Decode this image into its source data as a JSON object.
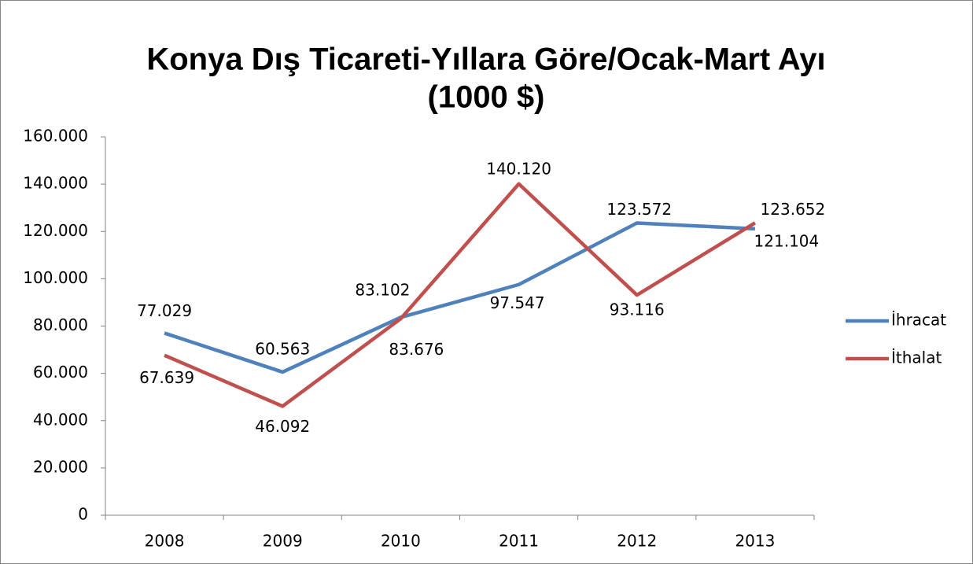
{
  "chart_data": {
    "type": "line",
    "title": [
      "Konya Dış Ticareti-Yıllara Göre/Ocak-Mart Ayı",
      "(1000 $)"
    ],
    "categories": [
      "2008",
      "2009",
      "2010",
      "2011",
      "2012",
      "2013"
    ],
    "series": [
      {
        "name": "İhracat",
        "color": "#4f81bd",
        "values": [
          77029,
          60563,
          83676,
          97547,
          123572,
          121104
        ],
        "value_labels": [
          "77.029",
          "60.563",
          "83.676",
          "97.547",
          "123.572",
          "121.104"
        ]
      },
      {
        "name": "İthalat",
        "color": "#c0504d",
        "values": [
          67639,
          46092,
          83102,
          140120,
          93116,
          123652
        ],
        "value_labels": [
          "67.639",
          "46.092",
          "83.102",
          "140.120",
          "93.116",
          "123.652"
        ]
      }
    ],
    "ylim": [
      0,
      160000
    ],
    "yticks": [
      0,
      {
        "value": 20000,
        "label": "20.000"
      },
      {
        "value": 40000,
        "label": "40.000"
      },
      {
        "value": 60000,
        "label": "60.000"
      },
      {
        "value": 80000,
        "label": "80.000"
      },
      {
        "value": 100000,
        "label": "100.000"
      },
      {
        "value": 120000,
        "label": "120.000"
      },
      {
        "value": 140000,
        "label": "140.000"
      },
      {
        "value": 160000,
        "label": "160.000"
      }
    ],
    "grid": false,
    "legend": "right"
  }
}
